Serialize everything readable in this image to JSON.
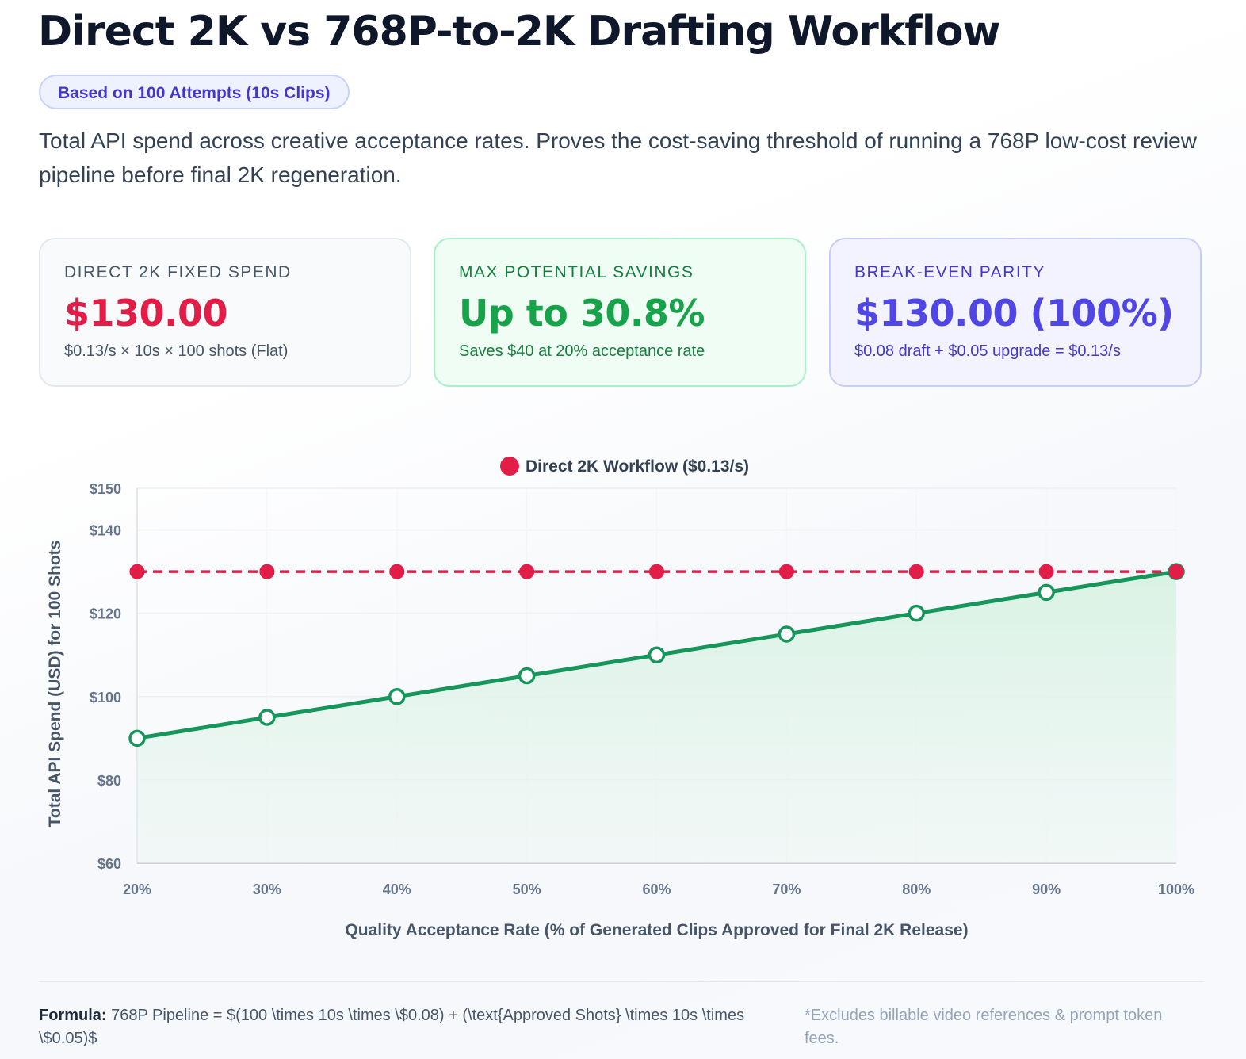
{
  "title": "Direct 2K vs 768P-to-2K Drafting Workflow",
  "badge": "Based on 100 Attempts (10s Clips)",
  "description": "Total API spend across creative acceptance rates. Proves the cost-saving threshold of running a 768P low-cost review pipeline before final 2K regeneration.",
  "cards": [
    {
      "label": "DIRECT 2K FIXED SPEND",
      "value": "$130.00",
      "sub": "$0.13/s × 10s × 100 shots (Flat)"
    },
    {
      "label": "MAX POTENTIAL SAVINGS",
      "value": "Up to 30.8%",
      "sub": "Saves $40 at 20% acceptance rate"
    },
    {
      "label": "BREAK-EVEN PARITY",
      "value": "$130.00 (100%)",
      "sub": "$0.08 draft + $0.05 upgrade = $0.13/s"
    }
  ],
  "chart_data": {
    "type": "line",
    "title": "",
    "xlabel": "Quality Acceptance Rate (% of Generated Clips Approved for Final 2K Release)",
    "ylabel": "Total API Spend (USD) for 100 Shots",
    "categories": [
      "20%",
      "30%",
      "40%",
      "50%",
      "60%",
      "70%",
      "80%",
      "90%",
      "100%"
    ],
    "y_ticks": [
      60,
      80,
      100,
      120,
      140,
      150
    ],
    "y_tick_labels": [
      "$60",
      "$80",
      "$100",
      "$120",
      "$140",
      "$150"
    ],
    "ylim": [
      60,
      150
    ],
    "grid": true,
    "legend": "top-center",
    "series": [
      {
        "name": "Direct 2K Workflow ($0.13/s)",
        "values": [
          130,
          130,
          130,
          130,
          130,
          130,
          130,
          130,
          130
        ],
        "color": "#e11d48",
        "style": "dashed",
        "marker": "filled"
      },
      {
        "values": [
          90,
          95,
          100,
          105,
          110,
          115,
          120,
          125,
          130
        ],
        "color": "#16965a",
        "style": "solid",
        "marker": "hollow",
        "fill": "#e7f6ee"
      }
    ]
  },
  "footer": {
    "formula_label": "Formula:",
    "formula": "768P Pipeline = $(100 \\times 10s \\times \\$0.08) + (\\text{Approved Shots} \\times 10s \\times \\$0.05)$",
    "note": "*Excludes billable video references & prompt token fees."
  }
}
